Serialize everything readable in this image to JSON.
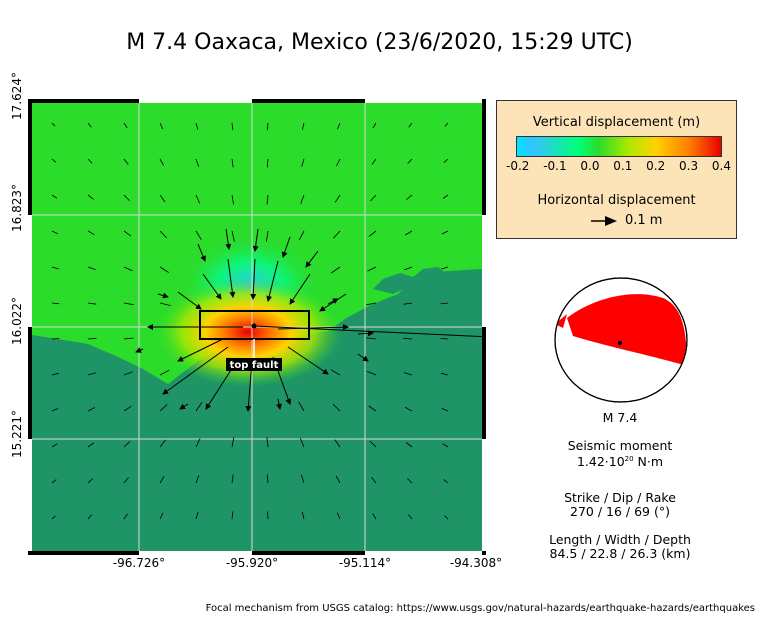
{
  "title": "M 7.4 Oaxaca, Mexico (23/6/2020, 15:29 UTC)",
  "axes": {
    "lat_labels": [
      "17.624°",
      "16.823°",
      "16.022°",
      "15.221°"
    ],
    "lon_labels": [
      "-96.726°",
      "-95.920°",
      "-95.114°",
      "-94.308°"
    ]
  },
  "map": {
    "fault_label": "top fault",
    "colors": {
      "land": "#2bdc2b",
      "ocean": "#1f9466",
      "fault_box": "#000000",
      "beachball": "#ff0000"
    }
  },
  "legend": {
    "vertical_title": "Vertical displacement (m)",
    "ticks": [
      "-0.2",
      "-0.1",
      "0.0",
      "0.1",
      "0.2",
      "0.3",
      "0.4"
    ],
    "horizontal_title": "Horizontal displacement",
    "arrow_scale": "0.1 m"
  },
  "mechanism": {
    "label": "M 7.4",
    "moment_title": "Seismic moment",
    "moment_mantissa": "1.42·10",
    "moment_exponent": "20",
    "moment_unit": " N·m",
    "sdr_title": "Strike / Dip / Rake",
    "sdr_value": "270 / 16 / 69 (°)",
    "lwd_title": "Length / Width / Depth",
    "lwd_value": "84.5 / 22.8 / 26.3 (km)"
  },
  "source_note": "Focal mechanism from USGS catalog: https://www.usgs.gov/natural-hazards/earthquake-hazards/earthquakes"
}
